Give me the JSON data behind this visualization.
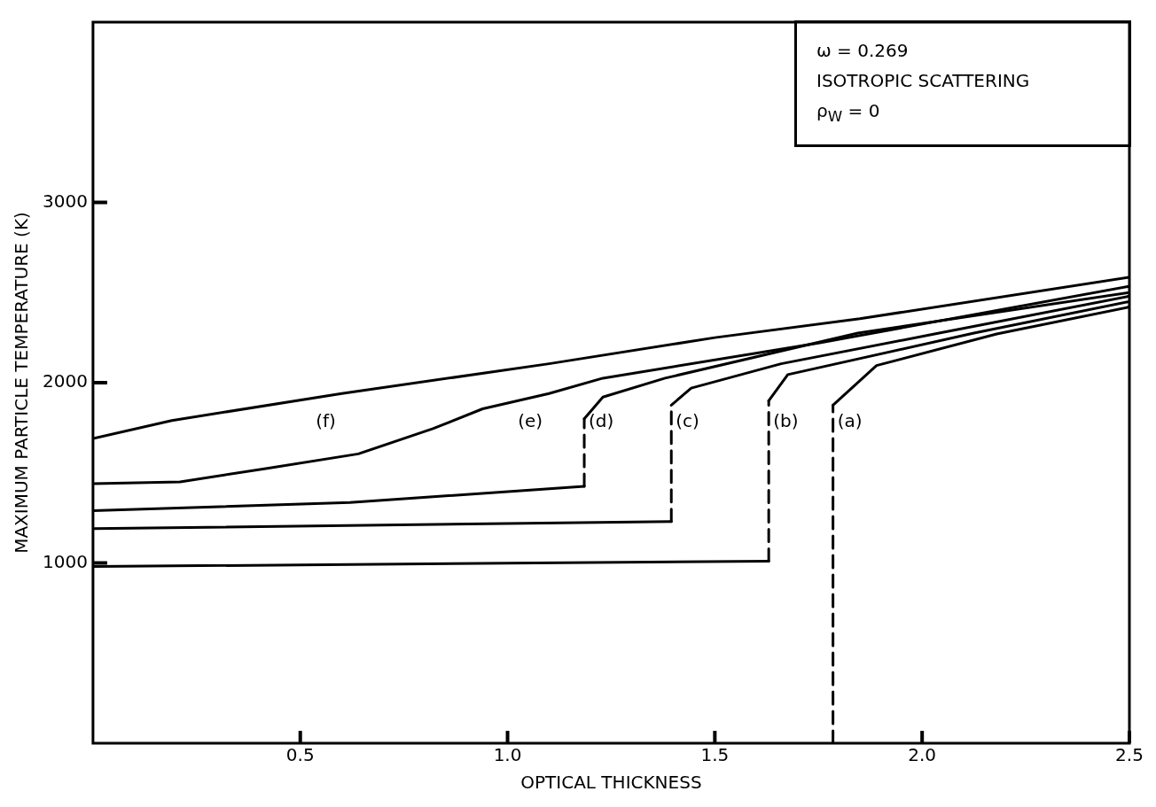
{
  "chart_data": {
    "type": "line",
    "xlabel": "OPTICAL THICKNESS",
    "ylabel": "MAXIMUM PARTICLE TEMPERATURE (K)",
    "xlim": [
      0,
      2.5
    ],
    "ylim": [
      0,
      4000
    ],
    "xticks": [
      0.5,
      {
        "value": 1,
        "label": "1.0"
      },
      1.5,
      {
        "value": 2,
        "label": "2.0"
      },
      2.5
    ],
    "yticks": [
      1000,
      2000,
      3000
    ],
    "grid": false,
    "legend": false,
    "marker": "none",
    "line_style": "solid",
    "series": [
      {
        "name": "(f)",
        "color": "#000000",
        "x": [
          0,
          0.19,
          0.6,
          1.1,
          1.5,
          1.85,
          2.5
        ],
        "values": [
          1690,
          1790,
          1940,
          2105,
          2250,
          2355,
          2585
        ]
      },
      {
        "name": "(e)",
        "color": "#000000",
        "x": [
          0,
          0.21,
          0.42,
          0.64,
          0.82,
          0.94,
          1.1,
          1.23,
          1.75,
          2.5
        ],
        "values": [
          1440,
          1450,
          1525,
          1605,
          1745,
          1855,
          1940,
          2025,
          2220,
          2535
        ]
      },
      {
        "color": "#000000",
        "x": [
          0,
          0.62,
          1.185
        ],
        "values": [
          1290,
          1335,
          1425
        ]
      },
      {
        "color": "#000000",
        "line_style": "dashed",
        "x": [
          1.185,
          1.185
        ],
        "values": [
          1425,
          1800
        ]
      },
      {
        "name": "(d)",
        "color": "#000000",
        "x": [
          1.185,
          1.23,
          1.38,
          1.845,
          2.5
        ],
        "values": [
          1800,
          1920,
          2025,
          2275,
          2500
        ]
      },
      {
        "color": "#000000",
        "x": [
          0,
          1.395
        ],
        "values": [
          1190,
          1230
        ]
      },
      {
        "color": "#000000",
        "line_style": "dashed",
        "x": [
          1.395,
          1.395
        ],
        "values": [
          1230,
          1875
        ]
      },
      {
        "name": "(c)",
        "color": "#000000",
        "x": [
          1.395,
          1.443,
          1.66,
          2.03,
          2.5
        ],
        "values": [
          1875,
          1970,
          2105,
          2270,
          2480
        ]
      },
      {
        "color": "#000000",
        "x": [
          0,
          1.63
        ],
        "values": [
          980,
          1010
        ]
      },
      {
        "color": "#000000",
        "line_style": "dashed",
        "x": [
          1.63,
          1.63
        ],
        "values": [
          1010,
          1900
        ]
      },
      {
        "name": "(b)",
        "color": "#000000",
        "x": [
          1.63,
          1.676,
          2.125,
          2.5
        ],
        "values": [
          1900,
          2045,
          2275,
          2450
        ]
      },
      {
        "color": "#000000",
        "line_style": "dashed",
        "x": [
          1.785,
          1.785
        ],
        "values": [
          0,
          1875
        ]
      },
      {
        "name": "(a)",
        "color": "#000000",
        "x": [
          1.785,
          1.89,
          2.18,
          2.5
        ],
        "values": [
          1875,
          2095,
          2270,
          2420
        ]
      }
    ],
    "annotations": [
      "ω = 0.269",
      "ISOTROPIC SCATTERING",
      "ρ$_{W}$ = 0"
    ]
  }
}
